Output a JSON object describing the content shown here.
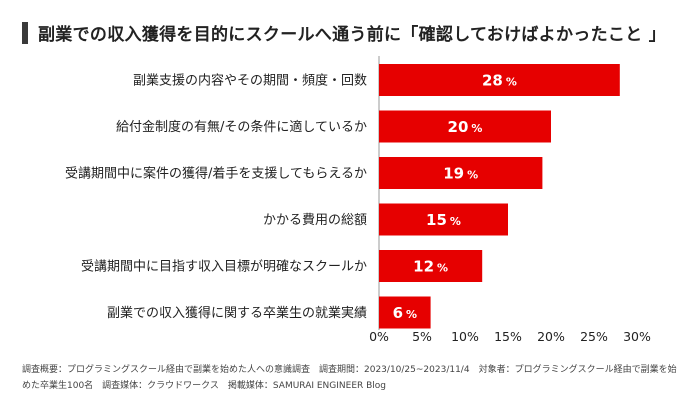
{
  "title": "副業での収入獲得を目的にスクールへ通う前に「確認しておけばよかったこと 」",
  "footnote": "調査概要：プログラミングスクール経由で副業を始めた人への意識調査　調査期間：2023/10/25~2023/11/4　対象者：プログラミングスクール経由で副業を始めた卒業生100名　調査媒体：クラウドワークス　掲載媒体：SAMURAI ENGINEER Blog",
  "colors": {
    "bar": "#e60000",
    "label_in": "#ffffff",
    "label_out": "#666666",
    "axis": "#999999"
  },
  "chart_data": {
    "type": "bar",
    "orientation": "horizontal",
    "categories": [
      "副業支援の内容やその期間・頻度・回数",
      "給付金制度の有無/その条件に適しているか",
      "受講期間中に案件の獲得/着手を支援してもらえるか",
      "かかる費用の総額",
      "受講期間中に目指す収入目標が明確なスクールか",
      "副業での収入獲得に関する卒業生の就業実績"
    ],
    "values": [
      28,
      20,
      19,
      15,
      12,
      6
    ],
    "unit": "%",
    "xlim": [
      0,
      30
    ],
    "ticks": [
      "0%",
      "5%",
      "10%",
      "15%",
      "20%",
      "25%",
      "30%"
    ],
    "tick_values": [
      0,
      5,
      10,
      15,
      20,
      25,
      30
    ],
    "grid": false
  }
}
